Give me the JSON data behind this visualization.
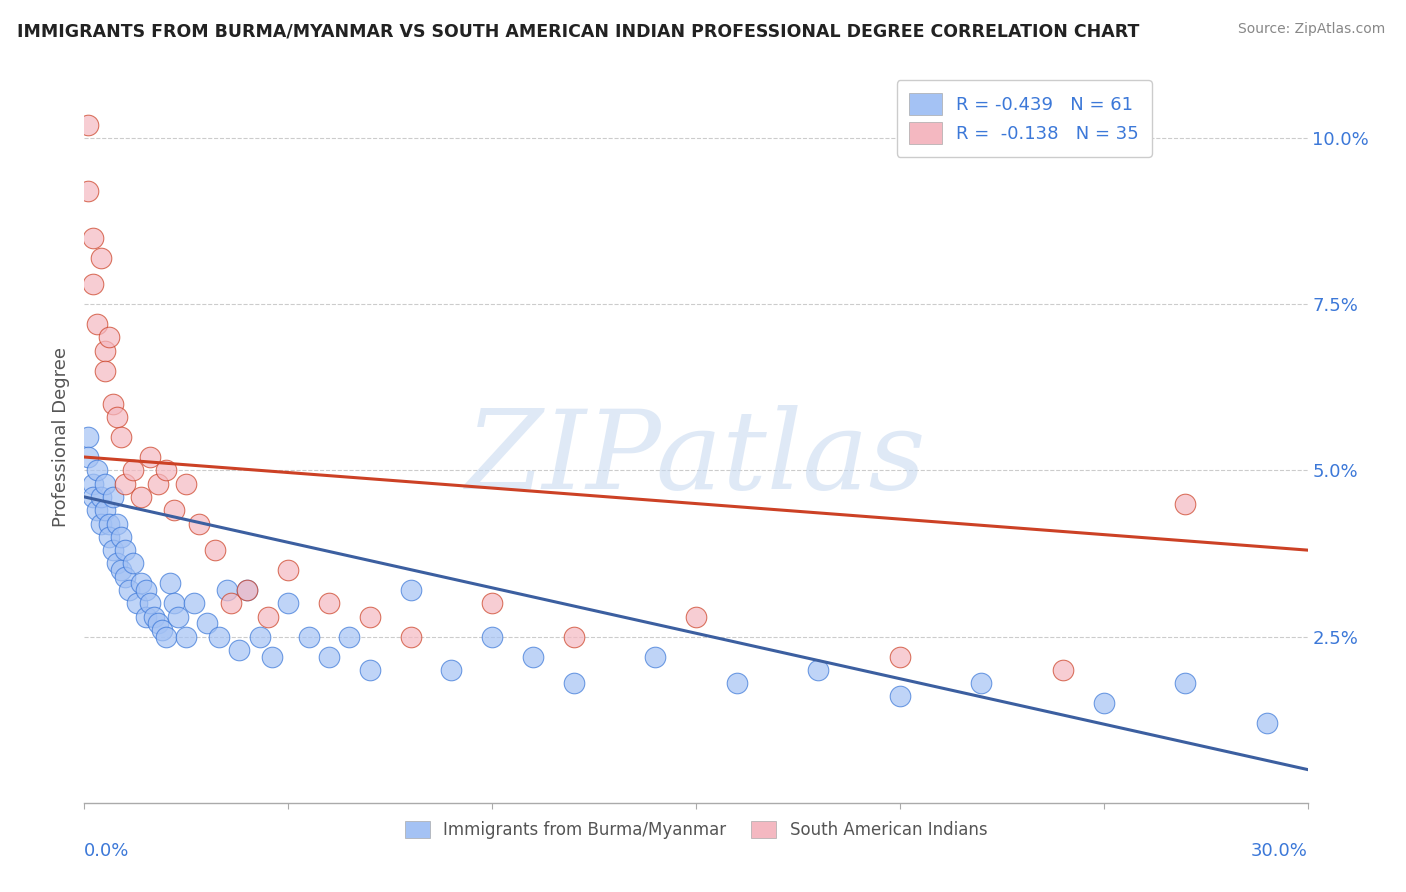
{
  "title": "IMMIGRANTS FROM BURMA/MYANMAR VS SOUTH AMERICAN INDIAN PROFESSIONAL DEGREE CORRELATION CHART",
  "source": "Source: ZipAtlas.com",
  "ylabel": "Professional Degree",
  "yticks": [
    "2.5%",
    "5.0%",
    "7.5%",
    "10.0%"
  ],
  "ytick_vals": [
    0.025,
    0.05,
    0.075,
    0.1
  ],
  "xlim": [
    0.0,
    0.3
  ],
  "ylim": [
    0.0,
    0.11
  ],
  "watermark_text": "ZIPatlas",
  "legend_blue_label": "R = -0.439   N = 61",
  "legend_pink_label": "R =  -0.138   N = 35",
  "legend_label_blue": "Immigrants from Burma/Myanmar",
  "legend_label_pink": "South American Indians",
  "blue_fill": "#a4c2f4",
  "pink_fill": "#f4b8c1",
  "blue_edge": "#3c78d8",
  "pink_edge": "#cc4125",
  "blue_line": "#3c5fa0",
  "pink_line": "#cc4125",
  "blue_scatter_x": [
    0.001,
    0.001,
    0.002,
    0.002,
    0.003,
    0.003,
    0.004,
    0.004,
    0.005,
    0.005,
    0.006,
    0.006,
    0.007,
    0.007,
    0.008,
    0.008,
    0.009,
    0.009,
    0.01,
    0.01,
    0.011,
    0.012,
    0.013,
    0.014,
    0.015,
    0.015,
    0.016,
    0.017,
    0.018,
    0.019,
    0.02,
    0.021,
    0.022,
    0.023,
    0.025,
    0.027,
    0.03,
    0.033,
    0.035,
    0.038,
    0.04,
    0.043,
    0.046,
    0.05,
    0.055,
    0.06,
    0.065,
    0.07,
    0.08,
    0.09,
    0.1,
    0.11,
    0.12,
    0.14,
    0.16,
    0.18,
    0.2,
    0.22,
    0.25,
    0.27,
    0.29
  ],
  "blue_scatter_y": [
    0.055,
    0.052,
    0.048,
    0.046,
    0.05,
    0.044,
    0.046,
    0.042,
    0.048,
    0.044,
    0.042,
    0.04,
    0.046,
    0.038,
    0.042,
    0.036,
    0.04,
    0.035,
    0.038,
    0.034,
    0.032,
    0.036,
    0.03,
    0.033,
    0.028,
    0.032,
    0.03,
    0.028,
    0.027,
    0.026,
    0.025,
    0.033,
    0.03,
    0.028,
    0.025,
    0.03,
    0.027,
    0.025,
    0.032,
    0.023,
    0.032,
    0.025,
    0.022,
    0.03,
    0.025,
    0.022,
    0.025,
    0.02,
    0.032,
    0.02,
    0.025,
    0.022,
    0.018,
    0.022,
    0.018,
    0.02,
    0.016,
    0.018,
    0.015,
    0.018,
    0.012
  ],
  "pink_scatter_x": [
    0.001,
    0.001,
    0.002,
    0.002,
    0.003,
    0.004,
    0.005,
    0.005,
    0.006,
    0.007,
    0.008,
    0.009,
    0.01,
    0.012,
    0.014,
    0.016,
    0.018,
    0.02,
    0.022,
    0.025,
    0.028,
    0.032,
    0.036,
    0.04,
    0.045,
    0.05,
    0.06,
    0.07,
    0.08,
    0.1,
    0.12,
    0.15,
    0.2,
    0.24,
    0.27
  ],
  "pink_scatter_y": [
    0.102,
    0.092,
    0.085,
    0.078,
    0.072,
    0.082,
    0.068,
    0.065,
    0.07,
    0.06,
    0.058,
    0.055,
    0.048,
    0.05,
    0.046,
    0.052,
    0.048,
    0.05,
    0.044,
    0.048,
    0.042,
    0.038,
    0.03,
    0.032,
    0.028,
    0.035,
    0.03,
    0.028,
    0.025,
    0.03,
    0.025,
    0.028,
    0.022,
    0.02,
    0.045
  ],
  "blue_line_x0": 0.0,
  "blue_line_x1": 0.3,
  "blue_line_y0": 0.046,
  "blue_line_y1": 0.005,
  "pink_line_x0": 0.0,
  "pink_line_x1": 0.3,
  "pink_line_y0": 0.052,
  "pink_line_y1": 0.038
}
